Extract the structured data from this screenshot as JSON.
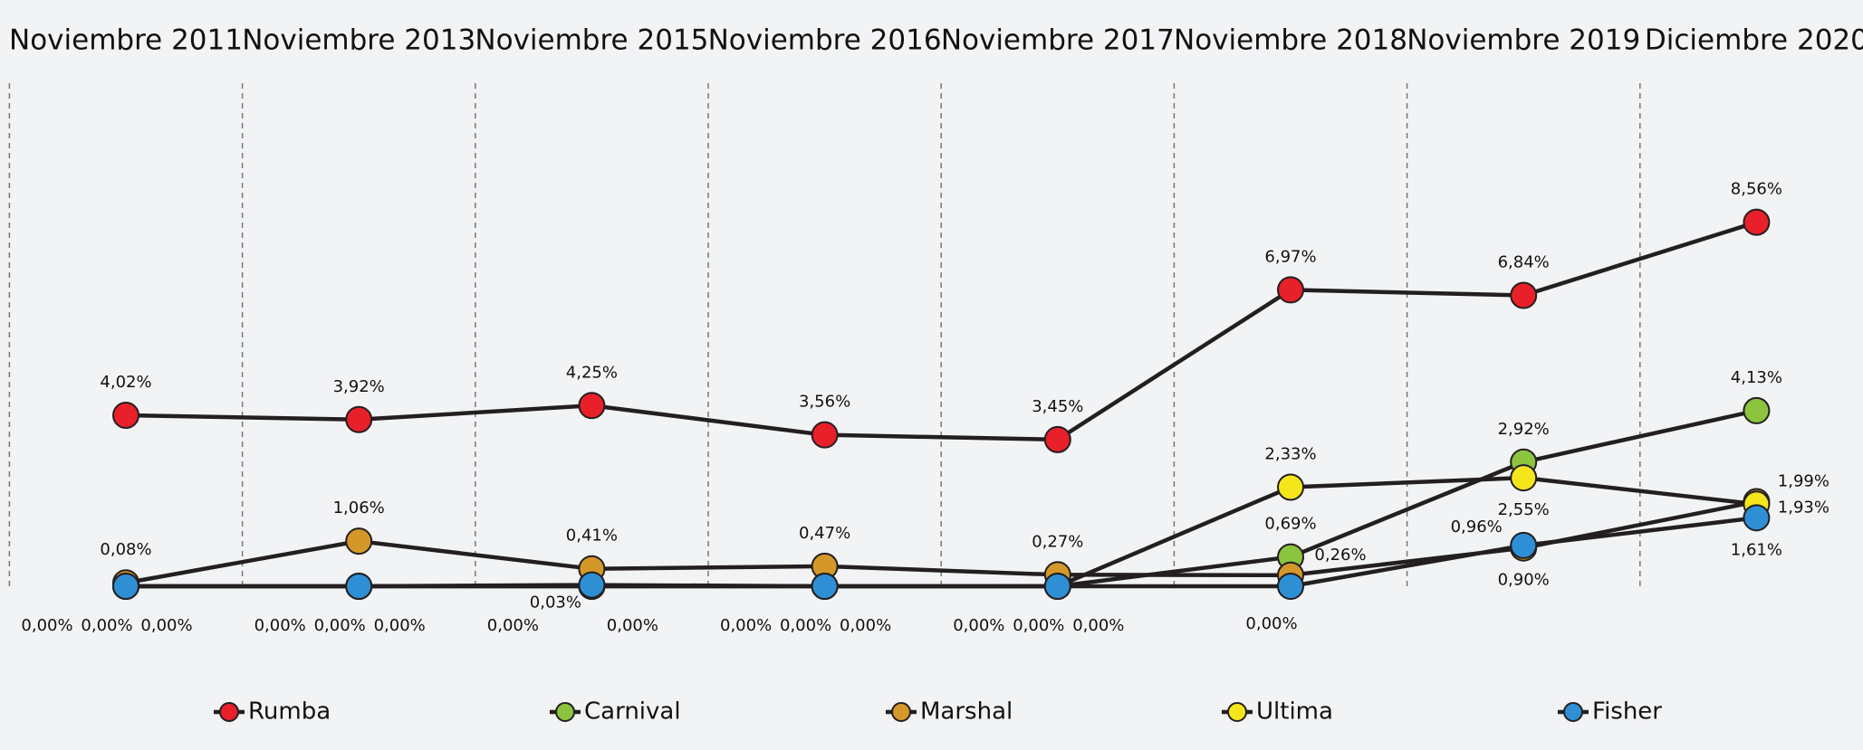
{
  "chart_data": {
    "type": "line",
    "categories": [
      "Noviembre 2011",
      "Noviembre 2013",
      "Noviembre 2015",
      "Noviembre 2016",
      "Noviembre 2017",
      "Noviembre 2018",
      "Noviembre 2019",
      "Diciembre 2020"
    ],
    "series": [
      {
        "name": "Rumba",
        "color": "#e8202a",
        "values": [
          4.02,
          3.92,
          4.25,
          3.56,
          3.45,
          6.97,
          6.84,
          8.56
        ],
        "value_labels": [
          "4,02%",
          "3,92%",
          "4,25%",
          "3,56%",
          "3,45%",
          "6,97%",
          "6,84%",
          "8,56%"
        ]
      },
      {
        "name": "Carnival",
        "color": "#8cc43f",
        "values": [
          0,
          0,
          0,
          0,
          0,
          0.69,
          2.92,
          4.13
        ],
        "value_labels": [
          "0,00%",
          "0,00%",
          "0,00%",
          "0,00%",
          "0,00%",
          "0,69%",
          "2,92%",
          "4,13%"
        ]
      },
      {
        "name": "Marshal",
        "color": "#d4982a",
        "values": [
          0.08,
          1.06,
          0.41,
          0.47,
          0.27,
          0.26,
          0.9,
          1.99
        ],
        "value_labels": [
          "0,08%",
          "1,06%",
          "0,41%",
          "0,47%",
          "0,27%",
          "0,26%",
          "0,90%",
          "1,99%"
        ]
      },
      {
        "name": "Ultima",
        "color": "#f5e61c",
        "values": [
          0,
          0,
          0,
          0,
          0,
          2.33,
          2.55,
          1.93
        ],
        "value_labels": [
          "0,00%",
          "0,00%",
          "0,00%",
          "0,00%",
          "0,00%",
          "2,33%",
          "2,55%",
          "1,93%"
        ]
      },
      {
        "name": "Fisher",
        "color": "#2f8fd4",
        "values": [
          0,
          0,
          0.03,
          0,
          0,
          0,
          0.96,
          1.61
        ],
        "value_labels": [
          "0,00%",
          "0,00%",
          "0,03%",
          "0,00%",
          "0,00%",
          "0,00%",
          "0,96%",
          "1,61%"
        ]
      }
    ]
  }
}
